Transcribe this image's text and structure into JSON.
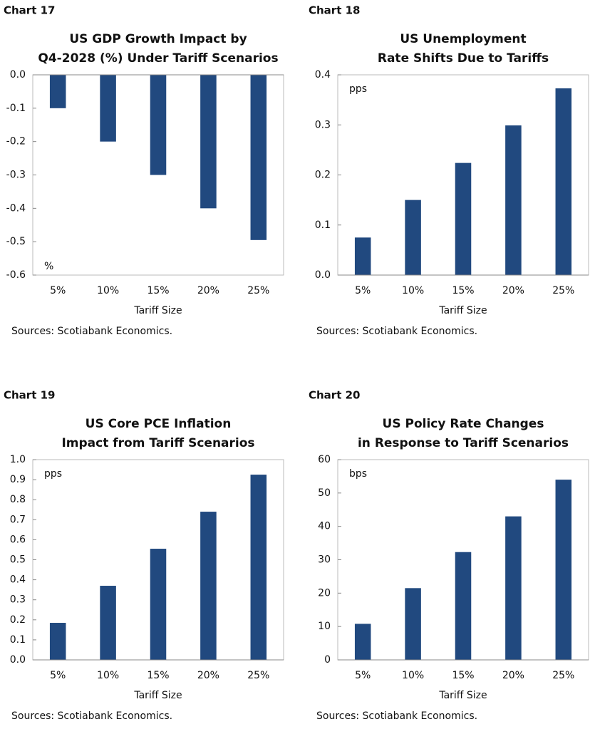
{
  "chart_data": [
    {
      "type": "bar",
      "label": "Chart 17",
      "title": [
        "US GDP Growth Impact by",
        "Q4-2028 (%) Under Tariff Scenarios"
      ],
      "unit": "%",
      "categories": [
        "5%",
        "10%",
        "15%",
        "20%",
        "25%"
      ],
      "values": [
        -0.1,
        -0.2,
        -0.3,
        -0.4,
        -0.495
      ],
      "color": "#21497f",
      "ylim": [
        -0.6,
        0
      ],
      "yticks": [
        {
          "value": 0,
          "label": "0.0"
        },
        -0.1,
        -0.2,
        -0.3,
        -0.4,
        -0.5,
        -0.6
      ],
      "xlabel": "Tariff Size",
      "source": "Sources: Scotiabank Economics."
    },
    {
      "type": "bar",
      "label": "Chart 18",
      "title": [
        "US Unemployment",
        "Rate Shifts Due to Tariffs"
      ],
      "unit": "pps",
      "categories": [
        "5%",
        "10%",
        "15%",
        "20%",
        "25%"
      ],
      "values": [
        0.075,
        0.15,
        0.224,
        0.299,
        0.373
      ],
      "color": "#21497f",
      "ylim": [
        0,
        0.4
      ],
      "yticks": [
        {
          "value": 0,
          "label": "0.0"
        },
        0.1,
        0.2,
        0.3,
        0.4
      ],
      "xlabel": "Tariff Size",
      "source": "Sources: Scotiabank Economics."
    },
    {
      "type": "bar",
      "label": "Chart 19",
      "title": [
        "US Core PCE Inflation",
        "Impact from Tariff Scenarios"
      ],
      "unit": "pps",
      "categories": [
        "5%",
        "10%",
        "15%",
        "20%",
        "25%"
      ],
      "values": [
        0.185,
        0.37,
        0.555,
        0.74,
        0.925
      ],
      "color": "#21497f",
      "ylim": [
        0,
        1
      ],
      "yticks": [
        {
          "value": 0,
          "label": "0.0"
        },
        0.1,
        0.2,
        0.3,
        0.4,
        0.5,
        0.6,
        0.7,
        0.8,
        0.9,
        {
          "value": 1,
          "label": "1.0"
        }
      ],
      "xlabel": "Tariff Size",
      "source": "Sources: Scotiabank Economics."
    },
    {
      "type": "bar",
      "label": "Chart 20",
      "title": [
        "US Policy Rate Changes",
        "in Response to Tariff Scenarios"
      ],
      "unit": "bps",
      "categories": [
        "5%",
        "10%",
        "15%",
        "20%",
        "25%"
      ],
      "values": [
        10.8,
        21.5,
        32.3,
        43,
        54
      ],
      "color": "#21497f",
      "ylim": [
        0,
        60
      ],
      "yticks": [
        0,
        10,
        20,
        30,
        40,
        50,
        60
      ],
      "xlabel": "Tariff Size",
      "source": "Sources: Scotiabank Economics."
    }
  ]
}
